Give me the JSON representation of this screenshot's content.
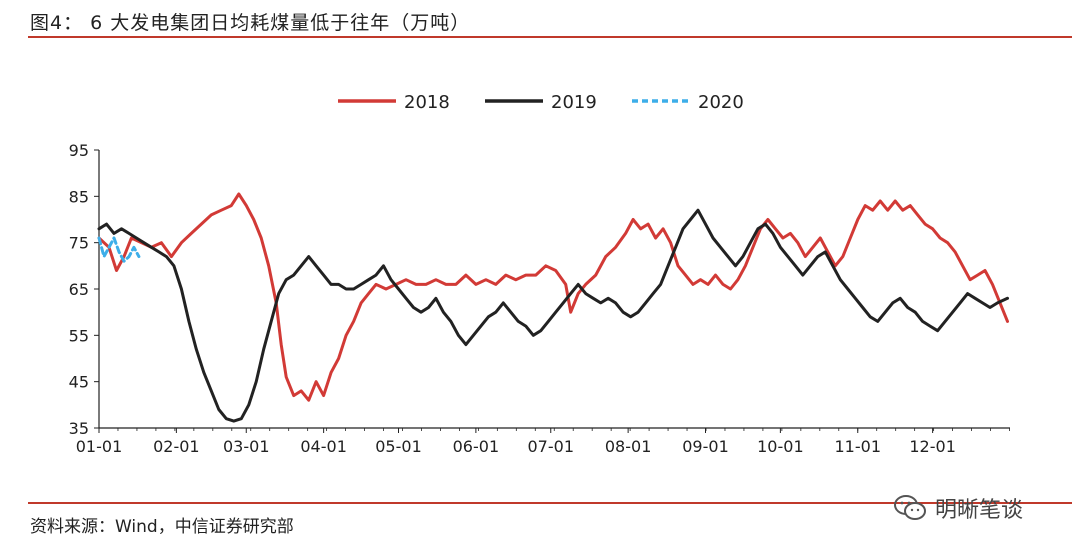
{
  "header": {
    "title": "图4： 6 大发电集团日均耗煤量低于往年（万吨）"
  },
  "footer": {
    "source": "资料来源：Wind，中信证券研究部",
    "watermark": "明晰笔谈"
  },
  "colors": {
    "rule": "#c0392b",
    "s2018": "#d23a36",
    "s2019": "#222222",
    "s2020": "#3daee9"
  },
  "chart_data": {
    "type": "line",
    "title": "6 大发电集团日均耗煤量低于往年",
    "ylabel": "",
    "xlabel": "",
    "ylim": [
      35,
      95
    ],
    "yticks": [
      "95",
      "85",
      "75",
      "65",
      "55",
      "45",
      "35"
    ],
    "xticks": [
      "01-01",
      "02-01",
      "03-01",
      "04-01",
      "05-01",
      "06-01",
      "07-01",
      "08-01",
      "09-01",
      "10-01",
      "11-01",
      "12-01"
    ],
    "x_unit": "day of year",
    "xlim": [
      1,
      366
    ],
    "legend_position": "top-center",
    "grid": false,
    "series": [
      {
        "name": "2018",
        "color": "#d23a36",
        "style": "solid",
        "points": [
          [
            1,
            76
          ],
          [
            5,
            74
          ],
          [
            8,
            69
          ],
          [
            11,
            72
          ],
          [
            14,
            76
          ],
          [
            18,
            75
          ],
          [
            22,
            74
          ],
          [
            26,
            75
          ],
          [
            30,
            72
          ],
          [
            34,
            75
          ],
          [
            38,
            77
          ],
          [
            42,
            79
          ],
          [
            46,
            81
          ],
          [
            50,
            82
          ],
          [
            54,
            83
          ],
          [
            57,
            85.5
          ],
          [
            60,
            83
          ],
          [
            63,
            80
          ],
          [
            66,
            76
          ],
          [
            69,
            70
          ],
          [
            72,
            62
          ],
          [
            74,
            53
          ],
          [
            76,
            46
          ],
          [
            79,
            42
          ],
          [
            82,
            43
          ],
          [
            85,
            41
          ],
          [
            88,
            45
          ],
          [
            91,
            42
          ],
          [
            94,
            47
          ],
          [
            97,
            50
          ],
          [
            100,
            55
          ],
          [
            103,
            58
          ],
          [
            106,
            62
          ],
          [
            109,
            64
          ],
          [
            112,
            66
          ],
          [
            116,
            65
          ],
          [
            120,
            66
          ],
          [
            124,
            67
          ],
          [
            128,
            66
          ],
          [
            132,
            66
          ],
          [
            136,
            67
          ],
          [
            140,
            66
          ],
          [
            144,
            66
          ],
          [
            148,
            68
          ],
          [
            152,
            66
          ],
          [
            156,
            67
          ],
          [
            160,
            66
          ],
          [
            164,
            68
          ],
          [
            168,
            67
          ],
          [
            172,
            68
          ],
          [
            176,
            68
          ],
          [
            180,
            70
          ],
          [
            184,
            69
          ],
          [
            188,
            66
          ],
          [
            190,
            60
          ],
          [
            193,
            64
          ],
          [
            196,
            66
          ],
          [
            200,
            68
          ],
          [
            204,
            72
          ],
          [
            208,
            74
          ],
          [
            212,
            77
          ],
          [
            215,
            80
          ],
          [
            218,
            78
          ],
          [
            221,
            79
          ],
          [
            224,
            76
          ],
          [
            227,
            78
          ],
          [
            230,
            75
          ],
          [
            233,
            70
          ],
          [
            236,
            68
          ],
          [
            239,
            66
          ],
          [
            242,
            67
          ],
          [
            245,
            66
          ],
          [
            248,
            68
          ],
          [
            251,
            66
          ],
          [
            254,
            65
          ],
          [
            257,
            67
          ],
          [
            260,
            70
          ],
          [
            263,
            74
          ],
          [
            266,
            78
          ],
          [
            269,
            80
          ],
          [
            272,
            78
          ],
          [
            275,
            76
          ],
          [
            278,
            77
          ],
          [
            281,
            75
          ],
          [
            284,
            72
          ],
          [
            287,
            74
          ],
          [
            290,
            76
          ],
          [
            293,
            73
          ],
          [
            296,
            70
          ],
          [
            299,
            72
          ],
          [
            302,
            76
          ],
          [
            305,
            80
          ],
          [
            308,
            83
          ],
          [
            311,
            82
          ],
          [
            314,
            84
          ],
          [
            317,
            82
          ],
          [
            320,
            84
          ],
          [
            323,
            82
          ],
          [
            326,
            83
          ],
          [
            329,
            81
          ],
          [
            332,
            79
          ],
          [
            335,
            78
          ],
          [
            338,
            76
          ],
          [
            341,
            75
          ],
          [
            344,
            73
          ],
          [
            347,
            70
          ],
          [
            350,
            67
          ],
          [
            353,
            68
          ],
          [
            356,
            69
          ],
          [
            359,
            66
          ],
          [
            362,
            62
          ],
          [
            365,
            58
          ]
        ]
      },
      {
        "name": "2019",
        "color": "#222222",
        "style": "solid",
        "points": [
          [
            1,
            78
          ],
          [
            4,
            79
          ],
          [
            7,
            77
          ],
          [
            10,
            78
          ],
          [
            13,
            77
          ],
          [
            16,
            76
          ],
          [
            19,
            75
          ],
          [
            22,
            74
          ],
          [
            25,
            73
          ],
          [
            28,
            72
          ],
          [
            31,
            70
          ],
          [
            34,
            65
          ],
          [
            37,
            58
          ],
          [
            40,
            52
          ],
          [
            43,
            47
          ],
          [
            46,
            43
          ],
          [
            49,
            39
          ],
          [
            52,
            37
          ],
          [
            55,
            36.5
          ],
          [
            58,
            37
          ],
          [
            61,
            40
          ],
          [
            64,
            45
          ],
          [
            67,
            52
          ],
          [
            70,
            58
          ],
          [
            73,
            64
          ],
          [
            76,
            67
          ],
          [
            79,
            68
          ],
          [
            82,
            70
          ],
          [
            85,
            72
          ],
          [
            88,
            70
          ],
          [
            91,
            68
          ],
          [
            94,
            66
          ],
          [
            97,
            66
          ],
          [
            100,
            65
          ],
          [
            103,
            65
          ],
          [
            106,
            66
          ],
          [
            109,
            67
          ],
          [
            112,
            68
          ],
          [
            115,
            70
          ],
          [
            118,
            67
          ],
          [
            121,
            65
          ],
          [
            124,
            63
          ],
          [
            127,
            61
          ],
          [
            130,
            60
          ],
          [
            133,
            61
          ],
          [
            136,
            63
          ],
          [
            139,
            60
          ],
          [
            142,
            58
          ],
          [
            145,
            55
          ],
          [
            148,
            53
          ],
          [
            151,
            55
          ],
          [
            154,
            57
          ],
          [
            157,
            59
          ],
          [
            160,
            60
          ],
          [
            163,
            62
          ],
          [
            166,
            60
          ],
          [
            169,
            58
          ],
          [
            172,
            57
          ],
          [
            175,
            55
          ],
          [
            178,
            56
          ],
          [
            181,
            58
          ],
          [
            184,
            60
          ],
          [
            187,
            62
          ],
          [
            190,
            64
          ],
          [
            193,
            66
          ],
          [
            196,
            64
          ],
          [
            199,
            63
          ],
          [
            202,
            62
          ],
          [
            205,
            63
          ],
          [
            208,
            62
          ],
          [
            211,
            60
          ],
          [
            214,
            59
          ],
          [
            217,
            60
          ],
          [
            220,
            62
          ],
          [
            223,
            64
          ],
          [
            226,
            66
          ],
          [
            229,
            70
          ],
          [
            232,
            74
          ],
          [
            235,
            78
          ],
          [
            238,
            80
          ],
          [
            241,
            82
          ],
          [
            244,
            79
          ],
          [
            247,
            76
          ],
          [
            250,
            74
          ],
          [
            253,
            72
          ],
          [
            256,
            70
          ],
          [
            259,
            72
          ],
          [
            262,
            75
          ],
          [
            265,
            78
          ],
          [
            268,
            79
          ],
          [
            271,
            77
          ],
          [
            274,
            74
          ],
          [
            277,
            72
          ],
          [
            280,
            70
          ],
          [
            283,
            68
          ],
          [
            286,
            70
          ],
          [
            289,
            72
          ],
          [
            292,
            73
          ],
          [
            295,
            70
          ],
          [
            298,
            67
          ],
          [
            301,
            65
          ],
          [
            304,
            63
          ],
          [
            307,
            61
          ],
          [
            310,
            59
          ],
          [
            313,
            58
          ],
          [
            316,
            60
          ],
          [
            319,
            62
          ],
          [
            322,
            63
          ],
          [
            325,
            61
          ],
          [
            328,
            60
          ],
          [
            331,
            58
          ],
          [
            334,
            57
          ],
          [
            337,
            56
          ],
          [
            340,
            58
          ],
          [
            343,
            60
          ],
          [
            346,
            62
          ],
          [
            349,
            64
          ],
          [
            352,
            63
          ],
          [
            355,
            62
          ],
          [
            358,
            61
          ],
          [
            361,
            62
          ],
          [
            365,
            63
          ]
        ]
      },
      {
        "name": "2020",
        "color": "#3daee9",
        "style": "dashed",
        "points": [
          [
            1,
            76
          ],
          [
            3,
            72
          ],
          [
            5,
            74
          ],
          [
            7,
            76
          ],
          [
            9,
            73
          ],
          [
            11,
            71
          ],
          [
            13,
            72
          ],
          [
            15,
            74
          ],
          [
            17,
            72
          ]
        ]
      }
    ]
  }
}
